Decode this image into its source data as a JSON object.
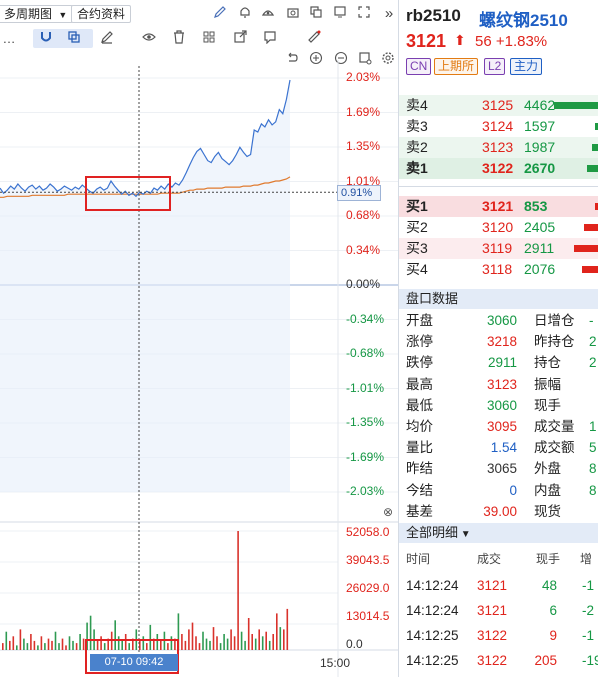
{
  "toolbar": {
    "period_label": "多周期图",
    "period_arrow": "▼",
    "contract_info_label": "合约资料",
    "more_label": "»",
    "dots_label": "…",
    "right_icons": [
      "pencil-icon",
      "bell-icon",
      "alarm-icon",
      "camera-icon",
      "copy-icon",
      "screen-icon",
      "expand-icon"
    ]
  },
  "chart": {
    "price_axis": [
      {
        "label": "2.03%",
        "tone": "red"
      },
      {
        "label": "1.69%",
        "tone": "red"
      },
      {
        "label": "1.35%",
        "tone": "red"
      },
      {
        "label": "1.01%",
        "tone": "red"
      },
      {
        "label": "0.68%",
        "tone": "red"
      },
      {
        "label": "0.34%",
        "tone": "red"
      },
      {
        "label": "0.00%",
        "tone": "gray"
      },
      {
        "label": "-0.34%",
        "tone": "green"
      },
      {
        "label": "-0.68%",
        "tone": "green"
      },
      {
        "label": "-1.01%",
        "tone": "green"
      },
      {
        "label": "-1.35%",
        "tone": "green"
      },
      {
        "label": "-1.69%",
        "tone": "green"
      },
      {
        "label": "-2.03%",
        "tone": "green"
      }
    ],
    "current_pct": "0.91%",
    "volume_axis": [
      "52058.0",
      "39043.5",
      "26029.0",
      "13014.5",
      "0.0"
    ],
    "cursor_time": "07-10 09:42",
    "end_time": "15:00",
    "close_icon": "⊗"
  },
  "chart_data": {
    "type": "line",
    "title": "",
    "xlabel": "",
    "ylabel": "",
    "ylim_pct": [
      -2.03,
      2.03
    ],
    "volume_ylim": [
      0,
      52058.0
    ],
    "series": [
      {
        "name": "",
        "color": "#3b73d0",
        "values_pct": [
          0.95,
          0.9,
          0.93,
          0.97,
          0.94,
          0.99,
          0.95,
          0.92,
          0.96,
          0.98,
          0.94,
          0.97,
          0.93,
          0.95,
          0.99,
          0.96,
          0.92,
          0.94,
          0.97,
          0.95,
          0.93,
          0.96,
          0.94,
          0.98,
          0.95,
          0.92,
          0.9,
          0.94,
          0.96,
          0.93,
          0.95,
          1.02,
          0.97,
          0.93,
          0.89,
          0.92,
          0.88,
          0.9,
          0.87,
          0.91,
          0.89,
          0.92,
          0.9,
          0.95,
          0.93,
          0.97,
          0.94,
          0.99,
          0.96,
          1.0,
          0.98,
          1.03,
          1.1,
          1.18,
          1.25,
          1.31,
          1.34,
          1.28,
          1.22,
          1.2,
          1.26,
          1.3,
          1.24,
          1.21,
          1.18,
          1.22,
          1.28,
          1.35,
          1.3,
          1.26,
          1.28,
          1.52,
          1.5,
          1.58,
          1.55,
          1.62,
          1.57,
          1.6,
          1.72,
          1.68,
          1.82,
          2.01
        ]
      },
      {
        "name": "",
        "color": "#e07a2e",
        "values_pct": [
          0.86,
          0.86,
          0.87,
          0.87,
          0.87,
          0.87,
          0.87,
          0.87,
          0.87,
          0.88,
          0.88,
          0.88,
          0.88,
          0.88,
          0.88,
          0.88,
          0.88,
          0.88,
          0.88,
          0.89,
          0.89,
          0.89,
          0.89,
          0.89,
          0.89,
          0.89,
          0.89,
          0.89,
          0.89,
          0.89,
          0.89,
          0.89,
          0.89,
          0.89,
          0.89,
          0.89,
          0.89,
          0.89,
          0.89,
          0.89,
          0.89,
          0.89,
          0.89,
          0.89,
          0.89,
          0.9,
          0.9,
          0.9,
          0.9,
          0.9,
          0.9,
          0.91,
          0.92,
          0.93,
          0.93,
          0.94,
          0.94,
          0.94,
          0.95,
          0.95,
          0.95,
          0.95,
          0.95,
          0.96,
          0.96,
          0.96,
          0.96,
          0.96,
          0.97,
          0.97,
          0.97,
          0.98,
          0.98,
          0.99,
          1.0,
          1.0,
          1.01,
          1.02,
          1.02,
          1.03,
          1.04,
          1.06
        ]
      }
    ],
    "volume": [
      3000,
      8000,
      4000,
      6000,
      2000,
      9000,
      5000,
      3000,
      7000,
      4000,
      2000,
      6000,
      3000,
      5000,
      4000,
      8000,
      3000,
      5000,
      2000,
      6000,
      4000,
      3000,
      7000,
      5000,
      12000,
      15000,
      9000,
      4000,
      6000,
      3000,
      5000,
      8000,
      13000,
      6000,
      4000,
      7000,
      3000,
      5000,
      9000,
      4000,
      6000,
      3000,
      11000,
      5000,
      7000,
      4000,
      8000,
      3000,
      6000,
      5000,
      16000,
      7000,
      4000,
      9000,
      12000,
      6000,
      3000,
      8000,
      5000,
      4000,
      10000,
      6000,
      3000,
      7000,
      5000,
      9000,
      6000,
      52058,
      8000,
      4000,
      14000,
      7000,
      5000,
      9000,
      6000,
      8000,
      4000,
      7000,
      16000,
      10000,
      9000,
      18000
    ]
  },
  "quote": {
    "code": "rb2510",
    "name": "螺纹钢2510",
    "last": "3121",
    "arrow": "⬆",
    "change": "56 +1.83%",
    "tags": [
      {
        "label": "CN",
        "color": "#7a3fb0"
      },
      {
        "label": "上期所",
        "color": "#e27b13"
      },
      {
        "label": "L2",
        "color": "#7a3fb0"
      },
      {
        "label": "主力",
        "color": "#1f5fc4"
      }
    ]
  },
  "order_book": {
    "asks": [
      {
        "label": "卖4",
        "price": "3125",
        "qty": "4462",
        "fill": 0.9
      },
      {
        "label": "卖3",
        "price": "3124",
        "qty": "1597",
        "fill": 0.0
      },
      {
        "label": "卖2",
        "price": "3123",
        "qty": "1987",
        "fill": 0.15
      },
      {
        "label": "卖1",
        "price": "3122",
        "qty": "2670",
        "fill": 0.25
      }
    ],
    "bids": [
      {
        "label": "买1",
        "price": "3121",
        "qty": "853",
        "fill": 0.05
      },
      {
        "label": "买2",
        "price": "3120",
        "qty": "2405",
        "fill": 0.3
      },
      {
        "label": "买3",
        "price": "3119",
        "qty": "2911",
        "fill": 0.5
      },
      {
        "label": "买4",
        "price": "3118",
        "qty": "2076",
        "fill": 0.35
      }
    ]
  },
  "stats": {
    "header": "盘口数据",
    "left": [
      {
        "label": "开盘",
        "value": "3060",
        "tone": "green"
      },
      {
        "label": "涨停",
        "value": "3218",
        "tone": "red"
      },
      {
        "label": "跌停",
        "value": "2911",
        "tone": "green"
      },
      {
        "label": "最高",
        "value": "3123",
        "tone": "red"
      },
      {
        "label": "最低",
        "value": "3060",
        "tone": "green"
      },
      {
        "label": "均价",
        "value": "3095",
        "tone": "red"
      },
      {
        "label": "量比",
        "value": "1.54",
        "tone": "blue"
      },
      {
        "label": "昨结",
        "value": "3065",
        "tone": "dark"
      },
      {
        "label": "今结",
        "value": "0",
        "tone": "blue"
      },
      {
        "label": "基差",
        "value": "39.00",
        "tone": "red"
      }
    ],
    "right": [
      {
        "label": "日增仓",
        "value": "-"
      },
      {
        "label": "昨持仓",
        "value": "2"
      },
      {
        "label": "持仓",
        "value": "2"
      },
      {
        "label": "振幅",
        "value": ""
      },
      {
        "label": "现手",
        "value": ""
      },
      {
        "label": "成交量",
        "value": "1"
      },
      {
        "label": "成交额",
        "value": "5"
      },
      {
        "label": "外盘",
        "value": "8"
      },
      {
        "label": "内盘",
        "value": "8"
      },
      {
        "label": "现货",
        "value": ""
      }
    ]
  },
  "ticks": {
    "header": "全部明细",
    "header_arrow": "▼",
    "columns": [
      "时间",
      "成交",
      "现手",
      "增"
    ],
    "rows": [
      {
        "time": "14:12:24",
        "price": "3121",
        "qty": "48",
        "inc": "-1",
        "qty_tone": "green"
      },
      {
        "time": "14:12:24",
        "price": "3121",
        "qty": "6",
        "inc": "-2",
        "qty_tone": "green"
      },
      {
        "time": "14:12:25",
        "price": "3122",
        "qty": "9",
        "inc": "-1",
        "qty_tone": "red"
      },
      {
        "time": "14:12:25",
        "price": "3122",
        "qty": "205",
        "inc": "-19",
        "qty_tone": "red"
      }
    ]
  }
}
